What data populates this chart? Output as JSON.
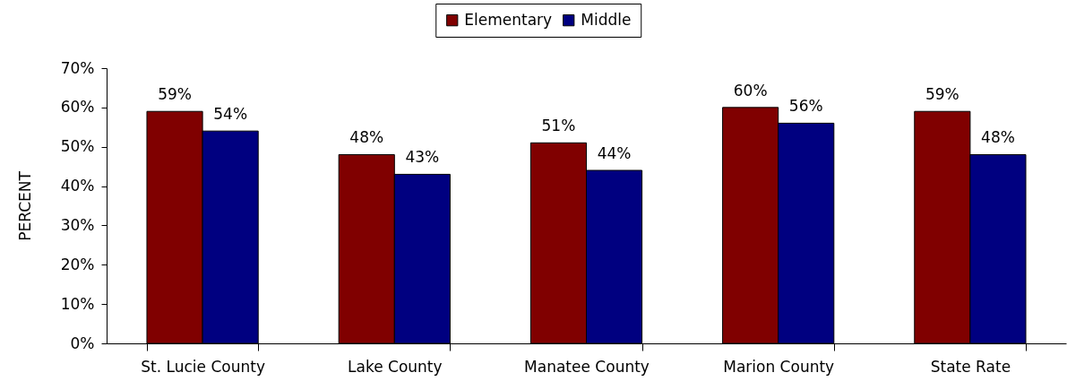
{
  "chart_data": {
    "type": "bar",
    "categories": [
      "St. Lucie County",
      "Lake County",
      "Manatee County",
      "Marion County",
      "State Rate"
    ],
    "series": [
      {
        "name": "Elementary",
        "color": "#800000",
        "values": [
          59,
          48,
          51,
          60,
          59
        ],
        "value_labels": [
          "59%",
          "48%",
          "51%",
          "60%",
          "59%"
        ]
      },
      {
        "name": "Middle",
        "color": "#000080",
        "values": [
          54,
          43,
          44,
          56,
          48
        ],
        "value_labels": [
          "54%",
          "43%",
          "44%",
          "56%",
          "48%"
        ]
      }
    ],
    "ylabel": "PERCENT",
    "ylim": [
      0,
      70
    ],
    "yticks": [
      {
        "value": 0,
        "label": "0%"
      },
      {
        "value": 10,
        "label": "10%"
      },
      {
        "value": 20,
        "label": "20%"
      },
      {
        "value": 30,
        "label": "30%"
      },
      {
        "value": 40,
        "label": "40%"
      },
      {
        "value": 50,
        "label": "50%"
      },
      {
        "value": 60,
        "label": "60%"
      },
      {
        "value": 70,
        "label": "70%"
      }
    ],
    "legend": "top"
  }
}
